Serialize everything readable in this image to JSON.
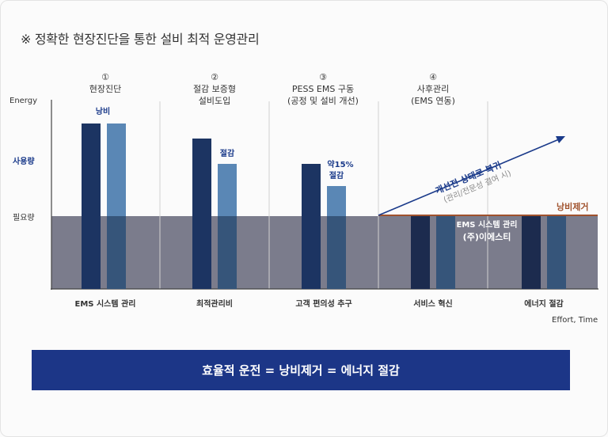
{
  "title": "※ 정확한 현장진단을 통한 설비 최적 운영관리",
  "y_axis": {
    "top": "Energy",
    "usage": "사용량",
    "required": "필요량"
  },
  "x_axis": "Effort, Time",
  "steps": [
    {
      "num": "①",
      "line1": "현장진단",
      "line2": ""
    },
    {
      "num": "②",
      "line1": "절감 보증형",
      "line2": "설비도입"
    },
    {
      "num": "③",
      "line1": "PESS EMS 구동",
      "line2": "(공정 및 설비 개선)"
    },
    {
      "num": "④",
      "line1": "사후관리",
      "line2": "(EMS 연동)"
    }
  ],
  "bottom_labels": [
    "EMS 시스템 관리",
    "최적관리비",
    "고객 편의성 추구",
    "서비스 혁신",
    "에너지 절감"
  ],
  "annotations": {
    "waste": "낭비",
    "saving": "절감",
    "about15": "약15%",
    "saving2": "절감",
    "improve": "개선전 상태로 복귀",
    "improve_sub": "(관리/전문성 결여 시)",
    "waste_removal": "낭비제거",
    "ems_mgmt": "EMS 시스템 관리",
    "company": "(주)이에스티"
  },
  "banner": "효율적 운전 = 낭비제거 = 에너지 절감",
  "colors": {
    "dark_bar": "#1c3462",
    "light_bar": "#5a87b5",
    "band": "#7b7c8c",
    "accent": "#1a3a8a",
    "waste_line": "#a0522d",
    "banner": "#1c3687"
  }
}
